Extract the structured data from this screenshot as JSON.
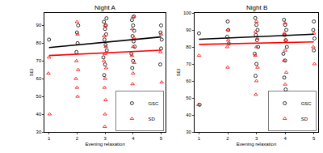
{
  "chart_data": [
    {
      "type": "scatter",
      "title": "Night A",
      "x_label": "Evening relaxation",
      "y_label": "SEI",
      "xlim": [
        0.85,
        5.15
      ],
      "xticks": [
        1,
        2,
        3,
        4,
        5
      ],
      "ylim": [
        30,
        97
      ],
      "yticks": [
        30,
        40,
        50,
        60,
        70,
        80,
        90
      ],
      "legend": "bottom right",
      "series": [
        {
          "name": "GSC",
          "color": "#000000",
          "marker": "circle",
          "x": [
            1.0,
            2.0,
            2.02,
            1.98,
            2.04,
            2.96,
            3.0,
            3.04,
            2.98,
            3.02,
            3.06,
            2.94,
            3.0,
            3.03,
            2.97,
            3.05,
            3.96,
            4.0,
            4.04,
            3.98,
            4.02,
            4.06,
            3.94,
            4.0,
            4.03,
            3.97,
            5.0,
            4.98,
            5.02,
            5.0,
            4.97
          ],
          "values": [
            82,
            86,
            80,
            75,
            90,
            92,
            88,
            85,
            82,
            79,
            76,
            72,
            68,
            90,
            62,
            94,
            93,
            90,
            87,
            84,
            81,
            78,
            74,
            70,
            95,
            66,
            90,
            86,
            82,
            77,
            68
          ]
        },
        {
          "name": "SD",
          "color": "#ff0000",
          "marker": "triangle",
          "x": [
            1.0,
            0.98,
            1.02,
            2.0,
            2.02,
            1.98,
            2.04,
            1.96,
            2.0,
            2.02,
            3.0,
            2.97,
            3.03,
            3.0,
            2.96,
            3.04,
            3.0,
            2.98,
            3.02,
            3.0,
            2.99,
            4.0,
            3.97,
            4.03,
            4.0,
            3.96,
            4.04,
            4.0,
            3.98,
            4.02,
            4.0,
            4.01,
            5.0,
            4.98,
            5.02
          ],
          "values": [
            72,
            63,
            40,
            92,
            85,
            70,
            65,
            60,
            55,
            50,
            90,
            84,
            78,
            74,
            70,
            66,
            60,
            55,
            48,
            40,
            33,
            95,
            88,
            83,
            78,
            73,
            69,
            63,
            57,
            50,
            43,
            36,
            85,
            75,
            58
          ]
        },
        {
          "type": "line",
          "color": "#000000",
          "x": [
            1,
            5
          ],
          "values": [
            77.5,
            83.5
          ]
        },
        {
          "type": "line",
          "color": "#ff0000",
          "x": [
            1,
            5
          ],
          "values": [
            73,
            76
          ]
        }
      ]
    },
    {
      "type": "scatter",
      "title": "Night B",
      "x_label": "Evening relaxation",
      "y_label": "SEI",
      "xlim": [
        0.85,
        5.15
      ],
      "xticks": [
        1,
        2,
        3,
        4,
        5
      ],
      "ylim": [
        30,
        100
      ],
      "yticks": [
        30,
        40,
        50,
        60,
        70,
        80,
        90,
        100
      ],
      "legend": "bottom right",
      "series": [
        {
          "name": "GSC",
          "color": "#000000",
          "marker": "circle",
          "x": [
            1.0,
            1.02,
            2.0,
            2.02,
            1.98,
            2.04,
            2.96,
            3.0,
            3.04,
            2.98,
            3.02,
            3.06,
            2.94,
            3.0,
            2.97,
            3.96,
            4.0,
            4.04,
            3.98,
            4.02,
            4.06,
            3.94,
            4.0,
            3.97,
            4.02,
            5.0,
            4.98,
            5.02,
            5.0
          ],
          "values": [
            88,
            46,
            95,
            90,
            86,
            82,
            97,
            93,
            90,
            87,
            84,
            80,
            76,
            70,
            63,
            96,
            93,
            90,
            87,
            84,
            80,
            76,
            72,
            62,
            55,
            95,
            90,
            85,
            78
          ]
        },
        {
          "name": "SD",
          "color": "#ff0000",
          "marker": "triangle",
          "x": [
            1.0,
            0.98,
            2.0,
            2.02,
            1.98,
            2.0,
            3.0,
            2.97,
            3.03,
            3.0,
            2.96,
            3.04,
            3.0,
            2.98,
            4.0,
            3.97,
            4.03,
            4.0,
            3.96,
            4.04,
            4.0,
            4.02,
            5.0,
            4.98,
            5.02
          ],
          "values": [
            75,
            46,
            90,
            84,
            80,
            68,
            95,
            89,
            85,
            80,
            75,
            68,
            60,
            52,
            94,
            88,
            84,
            78,
            72,
            65,
            58,
            48,
            88,
            80,
            70
          ]
        },
        {
          "type": "line",
          "color": "#000000",
          "x": [
            1,
            5
          ],
          "values": [
            84.5,
            87.5
          ]
        },
        {
          "type": "line",
          "color": "#ff0000",
          "x": [
            1,
            5
          ],
          "values": [
            81.5,
            83
          ]
        }
      ]
    }
  ]
}
